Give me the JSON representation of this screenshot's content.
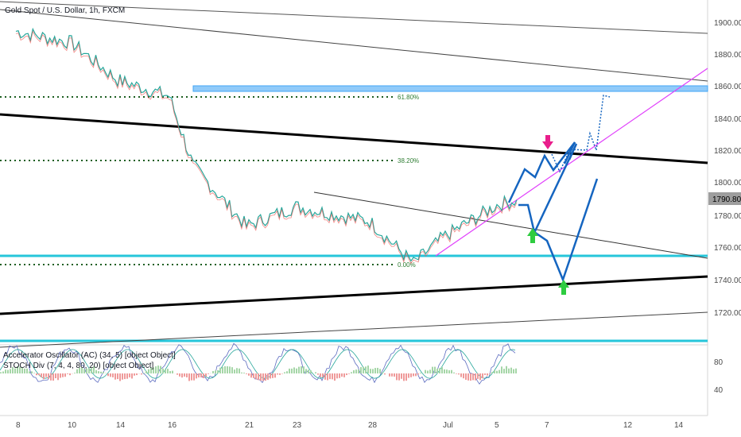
{
  "title": "Gold Spot / U.S. Dollar, 1h, FXCM",
  "colors": {
    "up": "#26a69a",
    "down": "#ef5350",
    "channel": "#000000",
    "support": "#26c6da",
    "resistance_zone": "#90caf9",
    "fib": "#1b5e20",
    "trendline": "#e040fb",
    "projection": "#1565c0",
    "arrow_down": "#e91e8c",
    "arrow_up": "#2ecc40"
  },
  "price_axis": {
    "ticks": [
      "1900.00",
      "1880.00",
      "1860.00",
      "1840.00",
      "1820.00",
      "1800.00",
      "1780.00",
      "1760.00",
      "1740.00",
      "1720.00"
    ],
    "current_price": "1790.80"
  },
  "time_axis": {
    "ticks": [
      "8",
      "10",
      "14",
      "16",
      "21",
      "23",
      "28",
      "Jul",
      "5",
      "7",
      "12",
      "14"
    ]
  },
  "fib_levels": [
    {
      "label": "61.80%",
      "price": 1852.5
    },
    {
      "label": "38.20%",
      "price": 1814.8
    },
    {
      "label": "0.00%",
      "price": 1750.0
    }
  ],
  "indicators": {
    "ac_label": "Accelerator Oscillator (AC) (34, 5) [object Object]",
    "stoch_label": "STOCH Div (7, 4, 4, 80, 20) [object Object]",
    "ticks": [
      "80",
      "40"
    ]
  },
  "chart_data": {
    "type": "line",
    "title": "Gold Spot / U.S. Dollar, 1h, FXCM",
    "x_ticks": [
      "8",
      "10",
      "14",
      "16",
      "21",
      "23",
      "28",
      "Jul",
      "5",
      "7",
      "12",
      "14"
    ],
    "ylim": [
      1710,
      1910
    ],
    "x": [
      "8",
      "10",
      "14",
      "16",
      "17",
      "21",
      "23",
      "28",
      "30",
      "Jul",
      "5",
      "6"
    ],
    "y": [
      1895,
      1888,
      1865,
      1855,
      1812,
      1775,
      1787,
      1778,
      1752,
      1768,
      1788,
      1791
    ],
    "last_price": 1790.8,
    "levels": {
      "support": 1755,
      "resistance_zone": [
        1857,
        1860
      ],
      "fib_618": 1852.5,
      "fib_382": 1814.8,
      "fib_0": 1750
    }
  }
}
